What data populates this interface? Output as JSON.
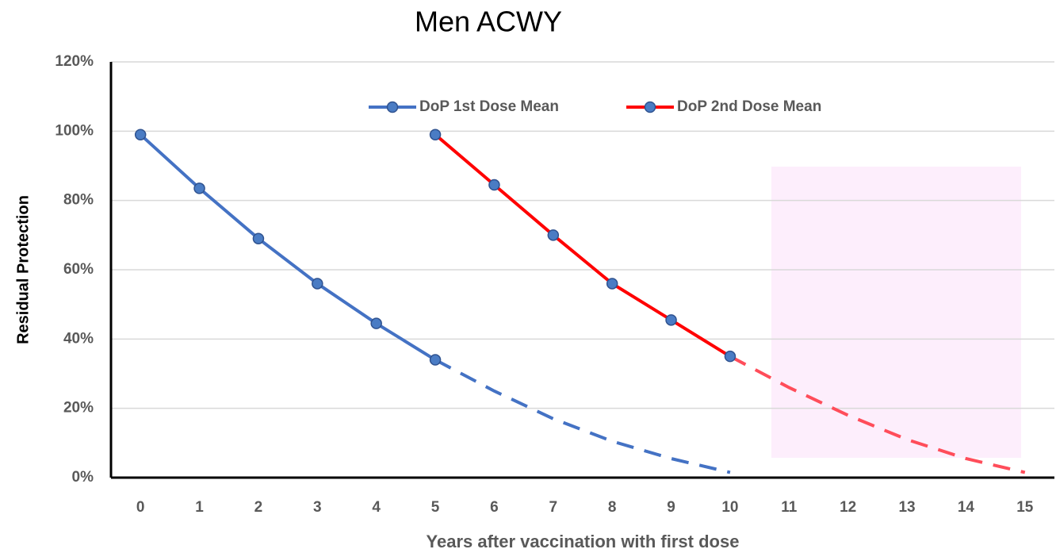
{
  "chart_data": {
    "type": "line",
    "title": "Men ACWY",
    "x_label": "Years after vaccination with first dose",
    "y_label": "Residual Protection",
    "categories": [
      "0",
      "1",
      "2",
      "3",
      "4",
      "5",
      "6",
      "7",
      "8",
      "9",
      "10",
      "11",
      "12",
      "13",
      "14",
      "15"
    ],
    "series": [
      {
        "name": "DoP 1st Dose Mean",
        "color": "#4472c4",
        "marker_color": "#4a7cc4",
        "values": [
          99,
          83.5,
          69,
          56,
          44.5,
          34,
          null,
          null,
          null,
          null,
          null,
          null,
          null,
          null,
          null,
          null
        ],
        "projection": [
          null,
          null,
          null,
          null,
          null,
          null,
          25,
          17,
          10.5,
          5.5,
          1.5,
          null,
          null,
          null,
          null,
          null
        ]
      },
      {
        "name": "DoP 2nd Dose Mean",
        "color": "#ff0000",
        "projection_color": "#ff4d5a",
        "marker_color": "#4a7cc4",
        "values": [
          null,
          null,
          null,
          null,
          null,
          99,
          84.5,
          70,
          56,
          45.5,
          35,
          null,
          null,
          null,
          null,
          null
        ],
        "projection": [
          null,
          null,
          null,
          null,
          null,
          null,
          null,
          null,
          null,
          null,
          null,
          26,
          18,
          11,
          5.5,
          1.5
        ]
      }
    ],
    "ylim": [
      0,
      120
    ],
    "yticks": [
      {
        "value": 0,
        "label": "0%"
      },
      {
        "value": 20,
        "label": "20%"
      },
      {
        "value": 40,
        "label": "40%"
      },
      {
        "value": 60,
        "label": "60%"
      },
      {
        "value": 80,
        "label": "80%"
      },
      {
        "value": 100,
        "label": "100%"
      },
      {
        "value": 120,
        "label": "120%"
      }
    ],
    "grid": true,
    "legend": "top"
  }
}
